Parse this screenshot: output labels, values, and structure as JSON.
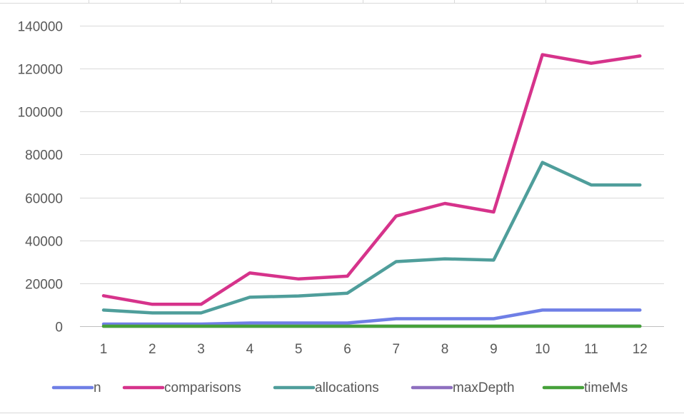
{
  "chart_data": {
    "type": "line",
    "title": "",
    "xlabel": "",
    "ylabel": "",
    "categories": [
      "1",
      "2",
      "3",
      "4",
      "5",
      "6",
      "7",
      "8",
      "9",
      "10",
      "11",
      "12"
    ],
    "ylim": [
      0,
      140000
    ],
    "yticks": [
      0,
      20000,
      40000,
      60000,
      80000,
      100000,
      120000,
      140000
    ],
    "ytick_labels": [
      "0",
      "20000",
      "40000",
      "60000",
      "80000",
      "100000",
      "120000",
      "140000"
    ],
    "grid": true,
    "legend_position": "bottom",
    "series": [
      {
        "name": "n",
        "color": "#6f7fe6",
        "values": [
          1000,
          1000,
          1000,
          1500,
          1500,
          1500,
          3500,
          3500,
          3500,
          7500,
          7500,
          7500
        ]
      },
      {
        "name": "comparisons",
        "color": "#d6338b",
        "values": [
          14200,
          10200,
          10200,
          24800,
          22000,
          23300,
          51300,
          57200,
          53200,
          126500,
          122500,
          125900
        ]
      },
      {
        "name": "allocations",
        "color": "#4f9e9b",
        "values": [
          7500,
          6200,
          6200,
          13500,
          14100,
          15400,
          30100,
          31400,
          30800,
          76300,
          65800,
          65800
        ]
      },
      {
        "name": "maxDepth",
        "color": "#8e6fbf",
        "values": [
          12,
          12,
          12,
          14,
          14,
          14,
          16,
          16,
          16,
          18,
          18,
          18
        ]
      },
      {
        "name": "timeMs",
        "color": "#46a13a",
        "values": [
          0.5,
          0.4,
          0.4,
          0.8,
          0.8,
          0.9,
          1.8,
          1.9,
          1.8,
          4.2,
          3.9,
          4.0
        ]
      }
    ]
  }
}
